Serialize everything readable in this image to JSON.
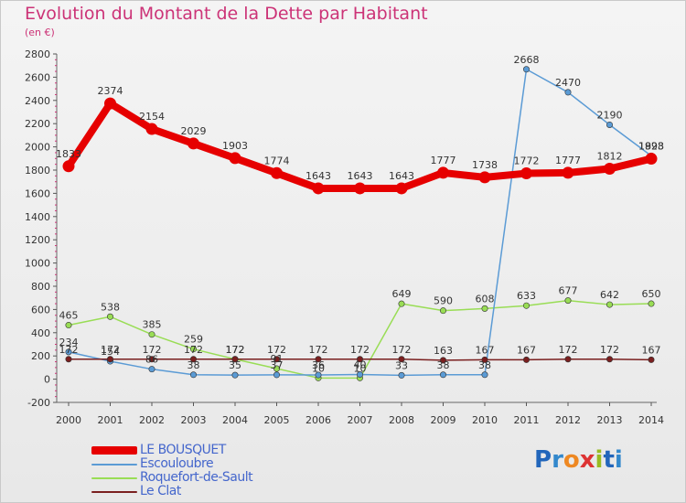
{
  "header": {
    "title": "Evolution du Montant de la Dette par Habitant",
    "unit": "(en €)"
  },
  "brand": {
    "name": "Proxiti",
    "letters": [
      "P",
      "r",
      "o",
      "x",
      "i",
      "t",
      "i"
    ],
    "letter_colors": [
      "#2266bb",
      "#3388cc",
      "#ee8822",
      "#dd3333",
      "#99bb22",
      "#2266bb",
      "#3388cc"
    ]
  },
  "chart_data": {
    "type": "line",
    "x": [
      2000,
      2001,
      2002,
      2003,
      2004,
      2005,
      2006,
      2007,
      2008,
      2009,
      2010,
      2011,
      2012,
      2013,
      2014
    ],
    "ylim": [
      -200,
      2800
    ],
    "yticks": [
      -200,
      0,
      200,
      400,
      600,
      800,
      1000,
      1200,
      1400,
      1600,
      1800,
      2000,
      2200,
      2400,
      2600,
      2800
    ],
    "grid": false,
    "legend_position": "bottom-left",
    "series": [
      {
        "name": "LE BOUSQUET",
        "color": "#e60000",
        "values": [
          1833,
          2374,
          2154,
          2029,
          1903,
          1774,
          1643,
          1643,
          1643,
          1777,
          1738,
          1772,
          1777,
          1812,
          1898
        ]
      },
      {
        "name": "Escouloubre",
        "color": "#5b9bd5",
        "values": [
          234,
          154,
          86,
          38,
          35,
          37,
          36,
          40,
          33,
          38,
          38,
          2668,
          2470,
          2190,
          1923
        ]
      },
      {
        "name": "Roquefort-de-Sault",
        "color": "#99dd55",
        "values": [
          465,
          538,
          385,
          259,
          172,
          91,
          10,
          10,
          649,
          590,
          608,
          633,
          677,
          642,
          650
        ]
      },
      {
        "name": "Le Clat",
        "color": "#7a1f1f",
        "values": [
          172,
          172,
          172,
          172,
          172,
          172,
          172,
          172,
          172,
          163,
          167,
          167,
          172,
          172,
          167
        ]
      }
    ],
    "data_labels": [
      {
        "series": 0,
        "values": [
          "1833",
          "2374",
          "2154",
          "2029",
          "1903",
          "1774",
          "1643",
          "1643",
          "1643",
          "1777",
          "1738",
          "1772",
          "1777",
          "1812",
          "1898"
        ]
      },
      {
        "series": 1,
        "values": [
          "234",
          "154",
          "86",
          "38",
          "35",
          "37",
          "36",
          "40",
          "33",
          "38",
          "38",
          "2668",
          "2470",
          "2190",
          "1923"
        ]
      },
      {
        "series": 2,
        "values": [
          "465",
          "538",
          "385",
          "259",
          "172",
          "91",
          "10",
          "10",
          "649",
          "590",
          "608",
          "633",
          "677",
          "642",
          "650"
        ]
      },
      {
        "series": 3,
        "values": [
          "172",
          "172",
          "172",
          "172",
          "172",
          "172",
          "172",
          "172",
          "172",
          "163",
          "167",
          "167",
          "172",
          "172",
          "167"
        ]
      }
    ]
  }
}
